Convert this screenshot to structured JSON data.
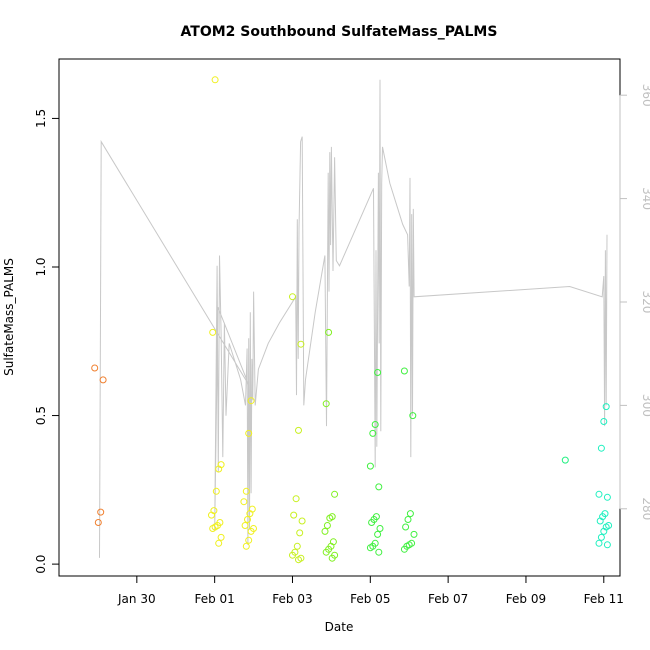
{
  "chart_data": {
    "type": "scatter",
    "title": "ATOM2 Southbound SulfateMass_PALMS",
    "xlabel": "Date",
    "ylabel": "SulfateMass_PALMS",
    "xlim": [
      "2017-01-28T00:00",
      "2017-02-11T10:00"
    ],
    "ylim": [
      -0.04,
      1.7
    ],
    "y_ticks": [
      0.0,
      0.5,
      1.0,
      1.5
    ],
    "y_tick_labels": [
      "0.0",
      "0.5",
      "1.0",
      "1.5"
    ],
    "x_ticks": [
      "2017-01-30",
      "2017-02-01",
      "2017-02-03",
      "2017-02-05",
      "2017-02-07",
      "2017-02-09",
      "2017-02-11"
    ],
    "x_tick_labels": [
      "Jan 30",
      "Feb 01",
      "Feb 03",
      "Feb 05",
      "Feb 07",
      "Feb 09",
      "Feb 11"
    ],
    "y2_ticks": [
      280,
      300,
      320,
      340,
      360
    ],
    "y2_tick_labels": [
      "280",
      "300",
      "320",
      "340",
      "360"
    ],
    "y2lim": [
      267,
      367
    ],
    "color_scale": [
      "#f08030",
      "#f0c000",
      "#f0f020",
      "#c8f020",
      "#80f020",
      "#40f040",
      "#20f080",
      "#20f0c0"
    ],
    "line_color": "#c8c8c8",
    "point_groups": [
      {
        "x": "2017-01-29T01:00",
        "color": "#f08030",
        "y": [
          0.66,
          0.62,
          0.175,
          0.14
        ]
      },
      {
        "x": "2017-02-01T01:00",
        "color": "#f0f020",
        "y": [
          1.63,
          0.78,
          0.335,
          0.32,
          0.245,
          0.18,
          0.165,
          0.14,
          0.13,
          0.125,
          0.12,
          0.09,
          0.07
        ]
      },
      {
        "x": "2017-02-01T21:00",
        "color": "#f0f020",
        "y": [
          0.55,
          0.44,
          0.245,
          0.21,
          0.185,
          0.17,
          0.15,
          0.13,
          0.12,
          0.11,
          0.08,
          0.06
        ]
      },
      {
        "x": "2017-02-03T03:00",
        "color": "#c8f020",
        "y": [
          0.9,
          0.74,
          0.45,
          0.22,
          0.165,
          0.145,
          0.105,
          0.06,
          0.04,
          0.03,
          0.02,
          0.015
        ]
      },
      {
        "x": "2017-02-03T23:00",
        "color": "#80f020",
        "y": [
          0.78,
          0.54,
          0.235,
          0.16,
          0.155,
          0.13,
          0.11,
          0.075,
          0.06,
          0.05,
          0.04,
          0.03,
          0.02
        ]
      },
      {
        "x": "2017-02-05T03:00",
        "color": "#40f040",
        "y": [
          0.645,
          0.47,
          0.44,
          0.33,
          0.26,
          0.16,
          0.15,
          0.14,
          0.12,
          0.1,
          0.07,
          0.06,
          0.055,
          0.04
        ]
      },
      {
        "x": "2017-02-06T00:00",
        "color": "#40f040",
        "y": [
          0.65,
          0.5,
          0.17,
          0.15,
          0.125,
          0.1,
          0.07,
          0.065,
          0.06,
          0.05
        ]
      },
      {
        "x": "2017-02-10T01:00",
        "color": "#20f080",
        "y": [
          0.35
        ]
      },
      {
        "x": "2017-02-11T00:00",
        "color": "#20f0c0",
        "y": [
          0.53,
          0.48,
          0.39,
          0.235,
          0.225,
          0.17,
          0.16,
          0.145,
          0.13,
          0.125,
          0.11,
          0.09,
          0.07,
          0.065
        ]
      }
    ],
    "line_series": [
      [
        "2017-01-29T01:00",
        270.5
      ],
      [
        "2017-01-29T02:00",
        351
      ],
      [
        "2017-02-01T21:00",
        304
      ],
      [
        "2017-02-01T02:00",
        319
      ],
      [
        "2017-02-01T00:00",
        276
      ],
      [
        "2017-02-01T01:30",
        327
      ],
      [
        "2017-02-01T02:15",
        287
      ],
      [
        "2017-02-01T03:00",
        329
      ],
      [
        "2017-02-01T04:00",
        314
      ],
      [
        "2017-02-01T05:00",
        290
      ],
      [
        "2017-02-01T06:00",
        316
      ],
      [
        "2017-02-01T07:00",
        298
      ],
      [
        "2017-02-01T09:00",
        312
      ],
      [
        "2017-02-01T12:00",
        309
      ],
      [
        "2017-02-01T16:00",
        305
      ],
      [
        "2017-02-01T19:00",
        300
      ],
      [
        "2017-02-01T20:00",
        311
      ],
      [
        "2017-02-01T20:30",
        273
      ],
      [
        "2017-02-01T21:00",
        313
      ],
      [
        "2017-02-01T21:30",
        276
      ],
      [
        "2017-02-01T22:00",
        318
      ],
      [
        "2017-02-01T22:30",
        283
      ],
      [
        "2017-02-01T23:00",
        309
      ],
      [
        "2017-02-01T23:30",
        301
      ],
      [
        "2017-02-02T00:00",
        322
      ],
      [
        "2017-02-02T01:00",
        300
      ],
      [
        "2017-02-02T03:00",
        307
      ],
      [
        "2017-02-02T09:00",
        312
      ],
      [
        "2017-02-02T16:00",
        316
      ],
      [
        "2017-02-03T02:00",
        321
      ],
      [
        "2017-02-03T02:30",
        302
      ],
      [
        "2017-02-03T03:00",
        336
      ],
      [
        "2017-02-03T03:30",
        309
      ],
      [
        "2017-02-03T04:00",
        334
      ],
      [
        "2017-02-03T05:00",
        351
      ],
      [
        "2017-02-03T06:00",
        352
      ],
      [
        "2017-02-03T07:00",
        300
      ],
      [
        "2017-02-03T08:00",
        305
      ],
      [
        "2017-02-03T14:00",
        318
      ],
      [
        "2017-02-03T20:00",
        329
      ],
      [
        "2017-02-03T21:00",
        296
      ],
      [
        "2017-02-03T22:00",
        345
      ],
      [
        "2017-02-03T22:30",
        322
      ],
      [
        "2017-02-03T23:00",
        349
      ],
      [
        "2017-02-03T23:30",
        331
      ],
      [
        "2017-02-04T00:00",
        350
      ],
      [
        "2017-02-04T01:00",
        326
      ],
      [
        "2017-02-04T02:00",
        348
      ],
      [
        "2017-02-04T03:00",
        328
      ],
      [
        "2017-02-04T05:00",
        327
      ],
      [
        "2017-02-05T02:00",
        342
      ],
      [
        "2017-02-05T03:00",
        288
      ],
      [
        "2017-02-05T03:30",
        330
      ],
      [
        "2017-02-05T04:00",
        292
      ],
      [
        "2017-02-05T05:00",
        345
      ],
      [
        "2017-02-05T05:30",
        312
      ],
      [
        "2017-02-05T06:00",
        363
      ],
      [
        "2017-02-05T06:30",
        295
      ],
      [
        "2017-02-05T07:00",
        343
      ],
      [
        "2017-02-05T07:30",
        350
      ],
      [
        "2017-02-05T12:00",
        343
      ],
      [
        "2017-02-05T20:00",
        335
      ],
      [
        "2017-02-05T23:00",
        333
      ],
      [
        "2017-02-06T00:00",
        323
      ],
      [
        "2017-02-06T00:30",
        344
      ],
      [
        "2017-02-06T01:00",
        290
      ],
      [
        "2017-02-06T01:30",
        337
      ],
      [
        "2017-02-06T02:00",
        298
      ],
      [
        "2017-02-06T02:30",
        338
      ],
      [
        "2017-02-06T03:00",
        321
      ],
      [
        "2017-02-10T03:00",
        323
      ],
      [
        "2017-02-10T23:00",
        321
      ],
      [
        "2017-02-11T00:00",
        325
      ],
      [
        "2017-02-11T00:30",
        296
      ],
      [
        "2017-02-11T01:00",
        330
      ],
      [
        "2017-02-11T01:30",
        300
      ],
      [
        "2017-02-11T02:00",
        333
      ]
    ]
  }
}
